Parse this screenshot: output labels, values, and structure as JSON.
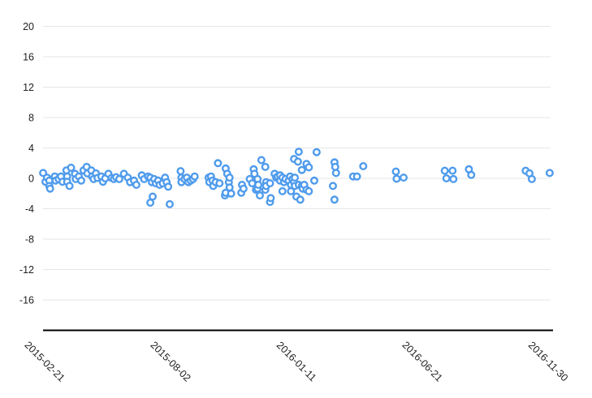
{
  "chart_data": {
    "type": "scatter",
    "title": "",
    "xlabel": "",
    "ylabel": "",
    "legend": "none",
    "grid": true,
    "marker": {
      "shape": "open-circle",
      "color": "#4f9bec",
      "fill": "#ffffff"
    },
    "colors": {
      "gridline": "#e6e6e6",
      "axis": "#000000",
      "tick_text": "#212121",
      "background": "#ffffff"
    },
    "x_axis": {
      "type": "date",
      "tick_labels": [
        "2015-02-21",
        "2015-08-02",
        "2016-01-11",
        "2016-06-21",
        "2016-11-30"
      ],
      "tick_interval_days": 162,
      "range": [
        "2015-02-21",
        "2016-11-30"
      ]
    },
    "y_axis": {
      "tick_labels": [
        20,
        16,
        12,
        8,
        4,
        0,
        -4,
        -8,
        -12,
        -16
      ],
      "range": [
        -20,
        20
      ]
    },
    "points": [
      [
        "2015-02-19",
        0.7
      ],
      [
        "2015-02-22",
        -0.45
      ],
      [
        "2015-02-24",
        0.1
      ],
      [
        "2015-02-27",
        -0.3
      ],
      [
        "2015-02-27",
        -1.0
      ],
      [
        "2015-02-28",
        -1.35
      ],
      [
        "2015-03-06",
        0.25
      ],
      [
        "2015-03-07",
        -0.3
      ],
      [
        "2015-03-11",
        -0.1
      ],
      [
        "2015-03-14",
        0.25
      ],
      [
        "2015-03-16",
        -0.45
      ],
      [
        "2015-03-21",
        1.05
      ],
      [
        "2015-03-22",
        0.25
      ],
      [
        "2015-03-22",
        -0.45
      ],
      [
        "2015-03-25",
        -1.0
      ],
      [
        "2015-03-27",
        1.4
      ],
      [
        "2015-04-01",
        0.6
      ],
      [
        "2015-04-02",
        -0.1
      ],
      [
        "2015-04-06",
        0.25
      ],
      [
        "2015-04-09",
        -0.3
      ],
      [
        "2015-04-12",
        1.05
      ],
      [
        "2015-04-16",
        1.5
      ],
      [
        "2015-04-17",
        0.65
      ],
      [
        "2015-04-22",
        1.05
      ],
      [
        "2015-04-23",
        0.25
      ],
      [
        "2015-04-25",
        -0.1
      ],
      [
        "2015-04-28",
        0.65
      ],
      [
        "2015-04-30",
        0.05
      ],
      [
        "2015-05-05",
        0.25
      ],
      [
        "2015-05-07",
        -0.45
      ],
      [
        "2015-05-10",
        0.0
      ],
      [
        "2015-05-14",
        0.6
      ],
      [
        "2015-05-18",
        0.05
      ],
      [
        "2015-05-21",
        -0.1
      ],
      [
        "2015-05-24",
        0.15
      ],
      [
        "2015-05-28",
        -0.1
      ],
      [
        "2015-06-03",
        0.6
      ],
      [
        "2015-06-08",
        0.1
      ],
      [
        "2015-06-11",
        -0.5
      ],
      [
        "2015-06-16",
        -0.3
      ],
      [
        "2015-06-19",
        -0.85
      ],
      [
        "2015-06-26",
        0.4
      ],
      [
        "2015-06-29",
        -0.1
      ],
      [
        "2015-07-04",
        0.25
      ],
      [
        "2015-07-07",
        0.1
      ],
      [
        "2015-07-07",
        -3.2
      ],
      [
        "2015-07-09",
        -0.5
      ],
      [
        "2015-07-10",
        -2.4
      ],
      [
        "2015-07-12",
        -0.1
      ],
      [
        "2015-07-14",
        -0.65
      ],
      [
        "2015-07-17",
        -0.3
      ],
      [
        "2015-07-19",
        -0.85
      ],
      [
        "2015-07-23",
        -0.65
      ],
      [
        "2015-07-26",
        0.1
      ],
      [
        "2015-07-28",
        -0.5
      ],
      [
        "2015-07-30",
        -1.1
      ],
      [
        "2015-08-01",
        -3.4
      ],
      [
        "2015-08-15",
        0.95
      ],
      [
        "2015-08-16",
        0.1
      ],
      [
        "2015-08-16",
        -0.5
      ],
      [
        "2015-08-20",
        -0.1
      ],
      [
        "2015-08-23",
        0.1
      ],
      [
        "2015-08-25",
        -0.5
      ],
      [
        "2015-08-28",
        -0.3
      ],
      [
        "2015-08-31",
        -0.1
      ],
      [
        "2015-09-02",
        0.25
      ],
      [
        "2015-09-20",
        0.1
      ],
      [
        "2015-09-21",
        -0.5
      ],
      [
        "2015-09-23",
        0.25
      ],
      [
        "2015-09-25",
        -0.3
      ],
      [
        "2015-09-26",
        -1.0
      ],
      [
        "2015-09-29",
        -0.5
      ],
      [
        "2015-10-02",
        2.0
      ],
      [
        "2015-10-04",
        -0.65
      ],
      [
        "2015-10-11",
        -2.25
      ],
      [
        "2015-10-12",
        1.3
      ],
      [
        "2015-10-12",
        -1.9
      ],
      [
        "2015-10-14",
        0.6
      ],
      [
        "2015-10-16",
        -0.5
      ],
      [
        "2015-10-17",
        0.1
      ],
      [
        "2015-10-17",
        -1.2
      ],
      [
        "2015-10-19",
        -2.0
      ],
      [
        "2015-11-01",
        -1.9
      ],
      [
        "2015-11-02",
        -0.85
      ],
      [
        "2015-11-04",
        -1.35
      ],
      [
        "2015-11-12",
        -0.1
      ],
      [
        "2015-11-15",
        -0.65
      ],
      [
        "2015-11-17",
        1.2
      ],
      [
        "2015-11-18",
        0.6
      ],
      [
        "2015-11-20",
        -1.5
      ],
      [
        "2015-11-22",
        -0.1
      ],
      [
        "2015-11-22",
        -1.35
      ],
      [
        "2015-11-23",
        -0.85
      ],
      [
        "2015-11-25",
        -2.25
      ],
      [
        "2015-11-27",
        2.4
      ],
      [
        "2015-12-02",
        1.5
      ],
      [
        "2015-12-02",
        -1.5
      ],
      [
        "2015-12-03",
        -0.5
      ],
      [
        "2015-12-03",
        -1.0
      ],
      [
        "2015-12-08",
        -0.65
      ],
      [
        "2015-12-08",
        -3.1
      ],
      [
        "2015-12-09",
        -2.6
      ],
      [
        "2015-12-14",
        0.6
      ],
      [
        "2015-12-16",
        0.1
      ],
      [
        "2015-12-18",
        0.25
      ],
      [
        "2015-12-21",
        0.4
      ],
      [
        "2015-12-21",
        -0.3
      ],
      [
        "2015-12-24",
        0.1
      ],
      [
        "2015-12-24",
        -1.7
      ],
      [
        "2015-12-26",
        -0.5
      ],
      [
        "2015-12-28",
        -0.1
      ],
      [
        "2016-01-01",
        -0.3
      ],
      [
        "2016-01-03",
        0.25
      ],
      [
        "2016-01-04",
        -0.85
      ],
      [
        "2016-01-04",
        -1.7
      ],
      [
        "2016-01-06",
        -0.1
      ],
      [
        "2016-01-08",
        2.55
      ],
      [
        "2016-01-08",
        -0.5
      ],
      [
        "2016-01-09",
        0.1
      ],
      [
        "2016-01-09",
        -1.0
      ],
      [
        "2016-01-11",
        -2.4
      ],
      [
        "2016-01-13",
        2.2
      ],
      [
        "2016-01-14",
        3.5
      ],
      [
        "2016-01-14",
        -0.85
      ],
      [
        "2016-01-16",
        -2.8
      ],
      [
        "2016-01-18",
        1.1
      ],
      [
        "2016-01-18",
        -1.0
      ],
      [
        "2016-01-19",
        -1.35
      ],
      [
        "2016-01-21",
        -0.85
      ],
      [
        "2016-01-24",
        1.9
      ],
      [
        "2016-01-24",
        -1.5
      ],
      [
        "2016-01-27",
        1.45
      ],
      [
        "2016-01-27",
        -1.7
      ],
      [
        "2016-02-03",
        -0.3
      ],
      [
        "2016-02-06",
        3.45
      ],
      [
        "2016-02-27",
        -1.0
      ],
      [
        "2016-02-29",
        2.1
      ],
      [
        "2016-02-29",
        -2.8
      ],
      [
        "2016-03-01",
        1.5
      ],
      [
        "2016-03-02",
        0.7
      ],
      [
        "2016-03-24",
        0.25
      ],
      [
        "2016-03-29",
        0.25
      ],
      [
        "2016-04-06",
        1.6
      ],
      [
        "2016-05-18",
        0.9
      ],
      [
        "2016-05-19",
        -0.05
      ],
      [
        "2016-05-28",
        0.1
      ],
      [
        "2016-07-20",
        1.0
      ],
      [
        "2016-07-22",
        0.0
      ],
      [
        "2016-07-30",
        1.0
      ],
      [
        "2016-07-31",
        -0.1
      ],
      [
        "2016-08-20",
        1.2
      ],
      [
        "2016-08-23",
        0.45
      ],
      [
        "2016-11-01",
        1.0
      ],
      [
        "2016-11-06",
        0.65
      ],
      [
        "2016-11-09",
        -0.1
      ],
      [
        "2016-12-02",
        0.7
      ]
    ]
  }
}
